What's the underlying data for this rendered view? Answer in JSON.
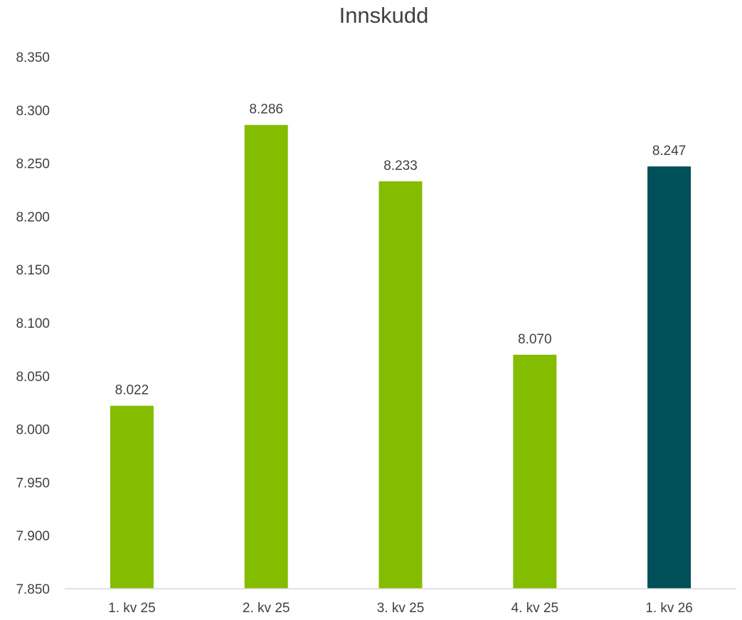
{
  "chart_data": {
    "type": "bar",
    "title": "Innskudd",
    "categories": [
      "1. kv 25",
      "2. kv 25",
      "3. kv 25",
      "4. kv 25",
      "1. kv 26"
    ],
    "series": [
      {
        "values": [
          8022,
          8286,
          8233,
          8070,
          8247
        ],
        "value_labels": [
          "8.022",
          "8.286",
          "8.233",
          "8.070",
          "8.247"
        ],
        "colors": [
          "#84bd00",
          "#84bd00",
          "#84bd00",
          "#84bd00",
          "#00505a"
        ]
      }
    ],
    "ylim": [
      7850,
      8350
    ],
    "yticks": [
      7850,
      7900,
      7950,
      8000,
      8050,
      8100,
      8150,
      8200,
      8250,
      8300,
      8350
    ],
    "ytick_labels": [
      "7.850",
      "7.900",
      "7.950",
      "8.000",
      "8.050",
      "8.100",
      "8.150",
      "8.200",
      "8.250",
      "8.300",
      "8.350"
    ],
    "xlabel": "",
    "ylabel": "",
    "grid": false,
    "legend": "none"
  }
}
